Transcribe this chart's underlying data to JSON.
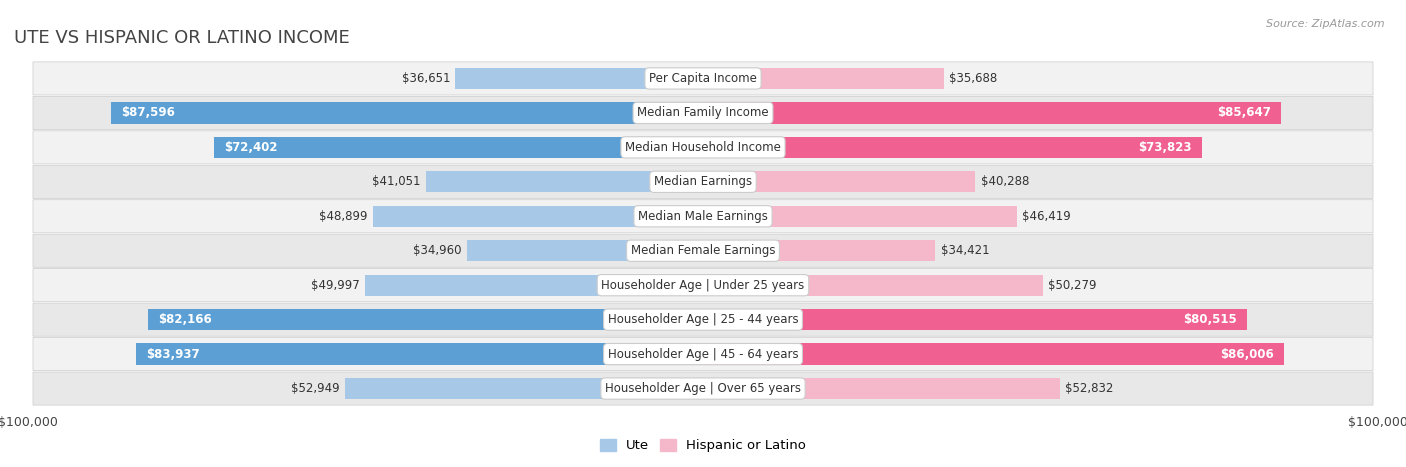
{
  "title": "UTE VS HISPANIC OR LATINO INCOME",
  "source": "Source: ZipAtlas.com",
  "categories": [
    "Per Capita Income",
    "Median Family Income",
    "Median Household Income",
    "Median Earnings",
    "Median Male Earnings",
    "Median Female Earnings",
    "Householder Age | Under 25 years",
    "Householder Age | 25 - 44 years",
    "Householder Age | 45 - 64 years",
    "Householder Age | Over 65 years"
  ],
  "ute_values": [
    36651,
    87596,
    72402,
    41051,
    48899,
    34960,
    49997,
    82166,
    83937,
    52949
  ],
  "hispanic_values": [
    35688,
    85647,
    73823,
    40288,
    46419,
    34421,
    50279,
    80515,
    86006,
    52832
  ],
  "ute_color_light": "#a8c8e8",
  "ute_color_dark": "#5b9fd4",
  "hispanic_color_light": "#f5b8cb",
  "hispanic_color_dark": "#f06090",
  "max_value": 100000,
  "row_bg_color_odd": "#f2f2f2",
  "row_bg_color_even": "#e8e8e8",
  "label_font_size": 8.5,
  "value_font_size": 8.5,
  "title_font_size": 13,
  "xlim": 100000,
  "threshold_dark": 65000
}
